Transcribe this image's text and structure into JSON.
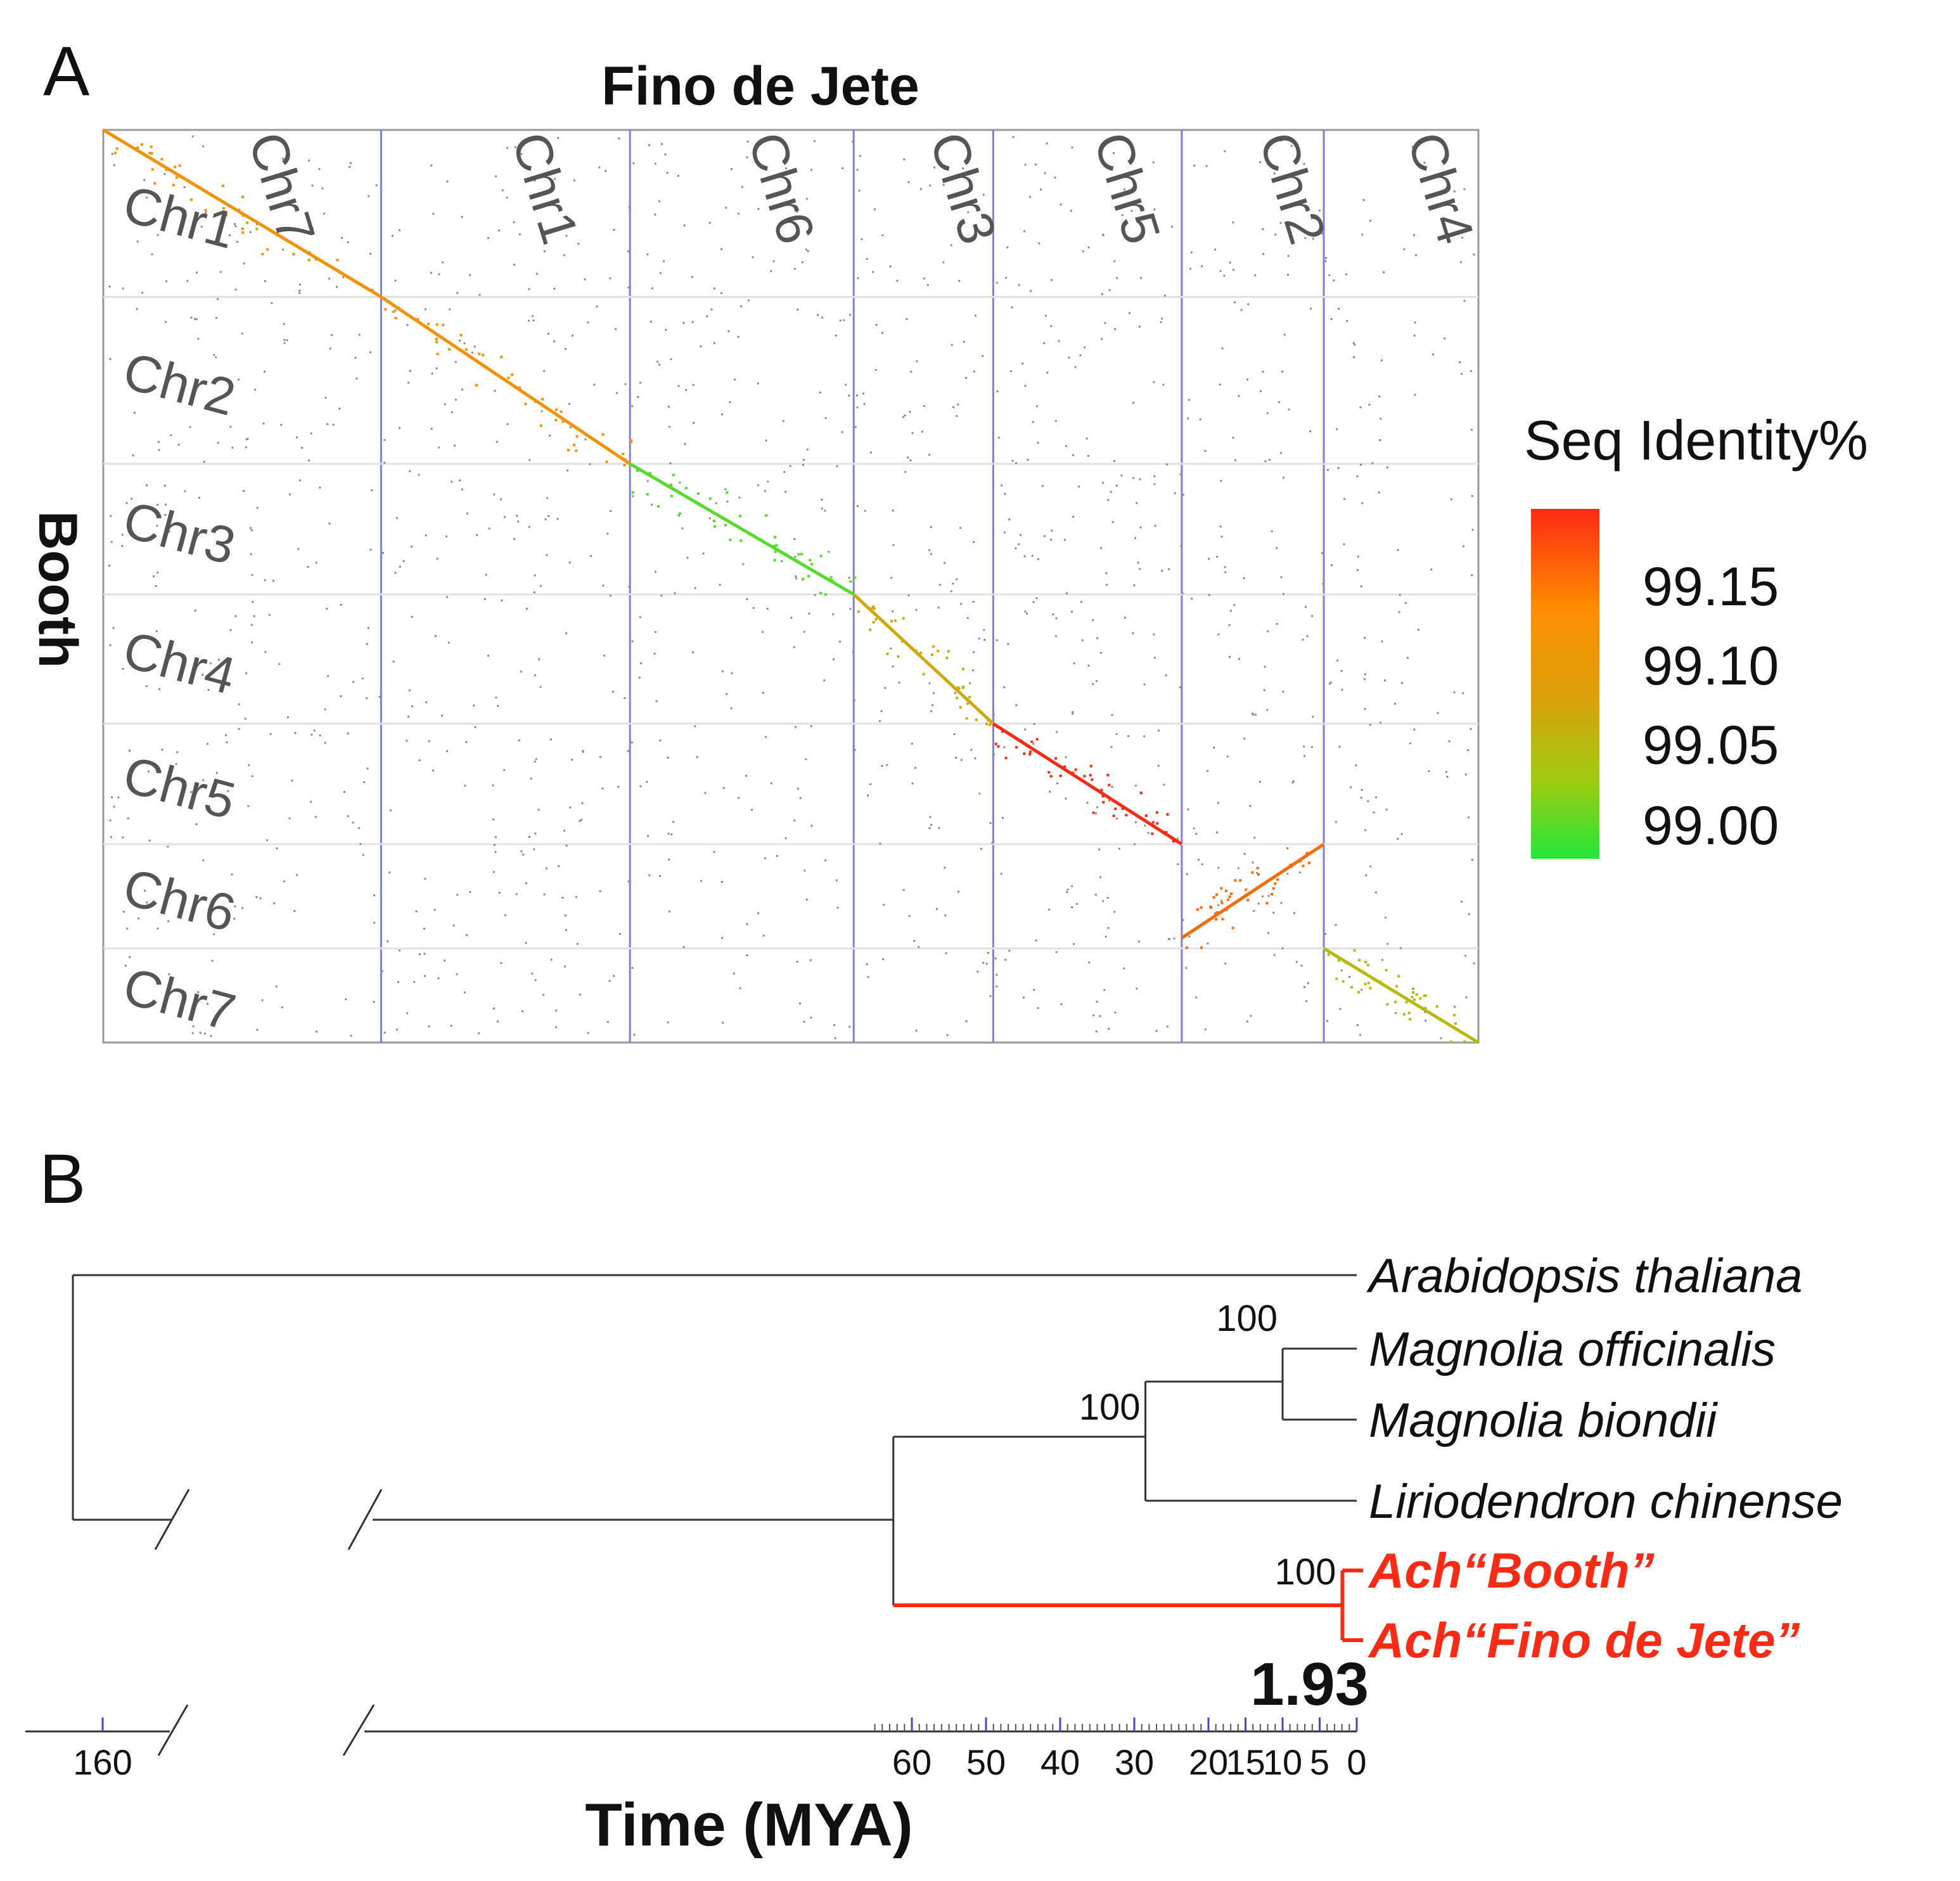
{
  "chart_data": [
    {
      "type": "dotplot",
      "panel_label": "A",
      "title": "Fino de Jete",
      "xlabel": "Fino de Jete",
      "ylabel": "Booth",
      "x_chromosomes": [
        "Chr7",
        "Chr1",
        "Chr6",
        "Chr3",
        "Chr5",
        "Chr2",
        "Chr4"
      ],
      "x_relative_lengths": [
        221,
        198,
        178,
        111,
        150,
        113,
        123
      ],
      "y_chromosomes": [
        "Chr1",
        "Chr2",
        "Chr3",
        "Chr4",
        "Chr5",
        "Chr6",
        "Chr7"
      ],
      "y_relative_lengths": [
        133,
        133,
        104,
        103,
        96,
        83,
        75
      ],
      "alignments": [
        {
          "x_chr": "Chr7",
          "y_chr": "Chr1",
          "identity": 99.12,
          "direction": "forward"
        },
        {
          "x_chr": "Chr1",
          "y_chr": "Chr2",
          "identity": 99.12,
          "direction": "forward"
        },
        {
          "x_chr": "Chr6",
          "y_chr": "Chr3",
          "identity": 99.0,
          "direction": "forward"
        },
        {
          "x_chr": "Chr3",
          "y_chr": "Chr4",
          "identity": 99.07,
          "direction": "forward"
        },
        {
          "x_chr": "Chr5",
          "y_chr": "Chr5",
          "identity": 99.2,
          "direction": "forward"
        },
        {
          "x_chr": "Chr2",
          "y_chr": "Chr6",
          "identity": 99.16,
          "direction": "inverted"
        },
        {
          "x_chr": "Chr4",
          "y_chr": "Chr7",
          "identity": 99.05,
          "direction": "forward"
        }
      ],
      "legend": {
        "title": "Seq Identity%",
        "ticks": [
          "99.15",
          "99.10",
          "99.05",
          "99.00"
        ],
        "range": [
          98.98,
          99.2
        ],
        "colors": [
          "#ff2a14",
          "#ff8c00",
          "#d9a20a",
          "#9ecc10",
          "#22e63a"
        ]
      }
    },
    {
      "type": "tree",
      "panel_label": "B",
      "xlabel": "Time (MYA)",
      "taxa": [
        {
          "name": "Arabidopsis thaliana",
          "highlight": false
        },
        {
          "name": "Magnolia officinalis",
          "highlight": false
        },
        {
          "name": "Magnolia biondii",
          "highlight": false
        },
        {
          "name": "Liriodendron chinense",
          "highlight": false
        },
        {
          "name": "Ach“Booth”",
          "highlight": true
        },
        {
          "name": "Ach“Fino de Jete”",
          "highlight": true
        }
      ],
      "node_ages_mya": {
        "root": 165,
        "mag_lirio_ach": 62.5,
        "mag_lirio": 28.5,
        "magnolia": 10,
        "ach": 1.93
      },
      "bootstrap": [
        {
          "node": "magnolia",
          "value": "100"
        },
        {
          "node": "mag_lirio",
          "value": "100"
        },
        {
          "node": "ach",
          "value": "100"
        }
      ],
      "divergence_label": "1.93",
      "axis_ticks": [
        {
          "value": 160,
          "label": "160"
        },
        {
          "value": 60,
          "label": "60"
        },
        {
          "value": 50,
          "label": "50"
        },
        {
          "value": 40,
          "label": "40"
        },
        {
          "value": 30,
          "label": "30"
        },
        {
          "value": 20,
          "label": "20"
        },
        {
          "value": 15,
          "label": "15"
        },
        {
          "value": 10,
          "label": "10"
        },
        {
          "value": 5,
          "label": "5"
        },
        {
          "value": 0,
          "label": "0"
        }
      ],
      "highlight_color": "#ff2a14"
    }
  ]
}
